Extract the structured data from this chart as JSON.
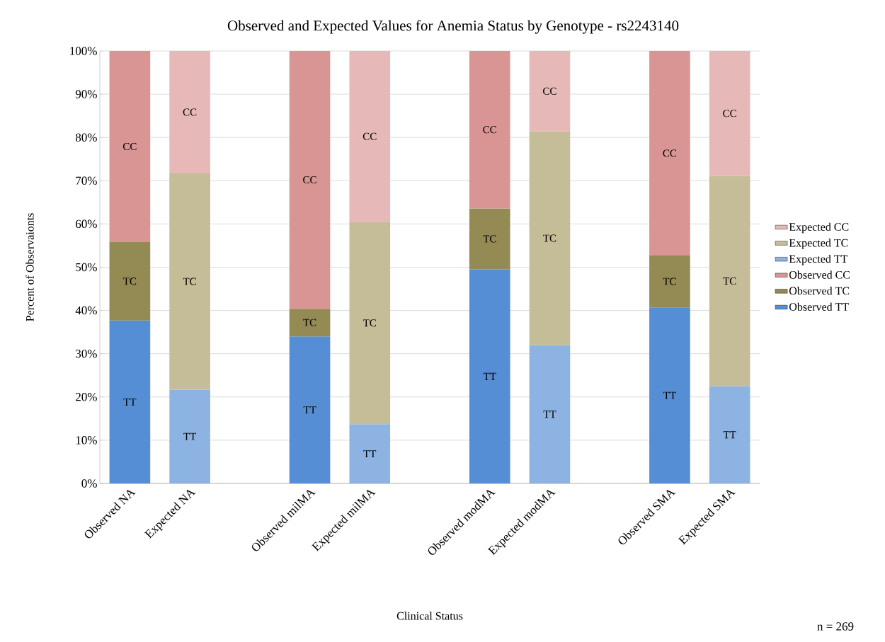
{
  "chart_data": {
    "type": "bar",
    "stacked": true,
    "title": "Observed and Expected Values for Anemia Status by Genotype - rs2243140",
    "xlabel": "Clinical Status",
    "ylabel": "Percent of Observaionts",
    "annotations": [
      "n = 269"
    ],
    "categories": [
      "Observed NA",
      "Expected NA",
      null,
      "Observed milMA",
      "Expected milMA",
      null,
      "Observed modMA",
      "Expected modMA",
      null,
      "Observed SMA",
      "Expected SMA"
    ],
    "ylim": [
      0,
      100
    ],
    "yticks": [
      {
        "value": 0,
        "label": "0%"
      },
      {
        "value": 10,
        "label": "10%"
      },
      {
        "value": 20,
        "label": "20%"
      },
      {
        "value": 30,
        "label": "30%"
      },
      {
        "value": 40,
        "label": "40%"
      },
      {
        "value": 50,
        "label": "50%"
      },
      {
        "value": 60,
        "label": "60%"
      },
      {
        "value": 70,
        "label": "70%"
      },
      {
        "value": 80,
        "label": "80%"
      },
      {
        "value": 90,
        "label": "90%"
      },
      {
        "value": 100,
        "label": "100%"
      }
    ],
    "grid": "y",
    "legend": "right",
    "series": [
      {
        "name": "Observed TT",
        "color": "#558ed5",
        "values": [
          37.7,
          null,
          null,
          34.0,
          null,
          null,
          49.5,
          null,
          null,
          40.7,
          null
        ],
        "value_labels": [
          "TT",
          null,
          null,
          "TT",
          null,
          null,
          "TT",
          null,
          null,
          "TT",
          null
        ]
      },
      {
        "name": "Observed TC",
        "color": "#948a54",
        "values": [
          18.1,
          null,
          null,
          6.4,
          null,
          null,
          14.1,
          null,
          null,
          12.0,
          null
        ],
        "value_labels": [
          "TC",
          null,
          null,
          "TC",
          null,
          null,
          "TC",
          null,
          null,
          "TC",
          null
        ]
      },
      {
        "name": "Observed CC",
        "color": "#d99594",
        "values": [
          44.2,
          null,
          null,
          59.6,
          null,
          null,
          36.4,
          null,
          null,
          47.3,
          null
        ],
        "value_labels": [
          "CC",
          null,
          null,
          "CC",
          null,
          null,
          "CC",
          null,
          null,
          "CC",
          null
        ]
      },
      {
        "name": "Expected TT",
        "color": "#8db3e2",
        "values": [
          null,
          21.7,
          null,
          null,
          13.7,
          null,
          null,
          32.0,
          null,
          null,
          22.5
        ],
        "value_labels": [
          null,
          "TT",
          null,
          null,
          "TT",
          null,
          null,
          "TT",
          null,
          null,
          "TT"
        ]
      },
      {
        "name": "Expected TC",
        "color": "#c4bd97",
        "values": [
          null,
          50.0,
          null,
          null,
          46.8,
          null,
          null,
          49.4,
          null,
          null,
          48.6
        ],
        "value_labels": [
          null,
          "TC",
          null,
          null,
          "TC",
          null,
          null,
          "TC",
          null,
          null,
          "TC"
        ]
      },
      {
        "name": "Expected CC",
        "color": "#e6b9b8",
        "values": [
          null,
          28.3,
          null,
          null,
          39.5,
          null,
          null,
          18.6,
          null,
          null,
          28.9
        ],
        "value_labels": [
          null,
          "CC",
          null,
          null,
          "CC",
          null,
          null,
          "CC",
          null,
          null,
          "CC"
        ]
      }
    ]
  }
}
